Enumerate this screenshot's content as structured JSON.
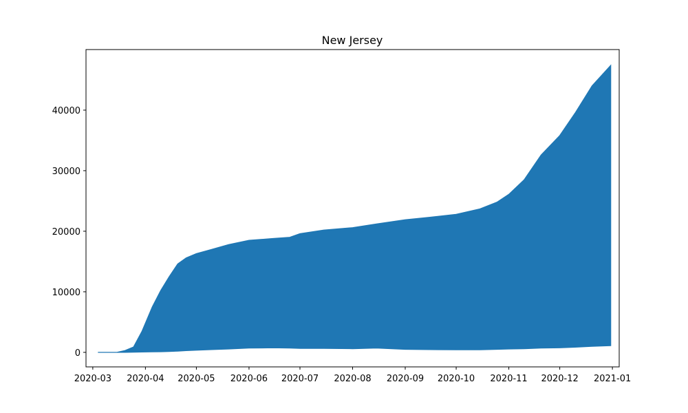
{
  "chart_data": {
    "type": "area",
    "title": "New Jersey",
    "xlabel": "",
    "ylabel": "",
    "x_range": [
      "2020-02-26",
      "2021-01-05"
    ],
    "ylim": [
      -2400,
      50000
    ],
    "x_ticks": [
      "2020-03",
      "2020-04",
      "2020-05",
      "2020-06",
      "2020-07",
      "2020-08",
      "2020-09",
      "2020-10",
      "2020-11",
      "2020-12",
      "2021-01"
    ],
    "y_ticks": [
      0,
      10000,
      20000,
      30000,
      40000
    ],
    "grid": false,
    "color": "#1f77b4",
    "series": [
      {
        "x": [
          "2020-03-04",
          "2020-03-15",
          "2020-03-20",
          "2020-03-25",
          "2020-03-30",
          "2020-04-05",
          "2020-04-10",
          "2020-04-15",
          "2020-04-20",
          "2020-04-25",
          "2020-05-01",
          "2020-05-10",
          "2020-05-20",
          "2020-06-01",
          "2020-06-15",
          "2020-06-25",
          "2020-07-01",
          "2020-07-15",
          "2020-08-01",
          "2020-08-15",
          "2020-09-01",
          "2020-09-15",
          "2020-10-01",
          "2020-10-15",
          "2020-10-25",
          "2020-11-01",
          "2020-11-10",
          "2020-11-20",
          "2020-12-01",
          "2020-12-10",
          "2020-12-20",
          "2020-12-31"
        ],
        "upper": [
          0,
          0,
          300,
          900,
          3500,
          7500,
          10200,
          12500,
          14600,
          15600,
          16300,
          17000,
          17800,
          18500,
          18800,
          19000,
          19600,
          20200,
          20600,
          21200,
          21900,
          22300,
          22800,
          23700,
          24800,
          26100,
          28500,
          32600,
          35800,
          39500,
          44000,
          47400
        ],
        "lower": [
          0,
          0,
          0,
          20,
          60,
          80,
          100,
          150,
          200,
          280,
          350,
          450,
          550,
          700,
          750,
          700,
          650,
          650,
          600,
          700,
          500,
          450,
          420,
          430,
          500,
          550,
          600,
          700,
          750,
          850,
          1000,
          1100
        ]
      }
    ]
  }
}
